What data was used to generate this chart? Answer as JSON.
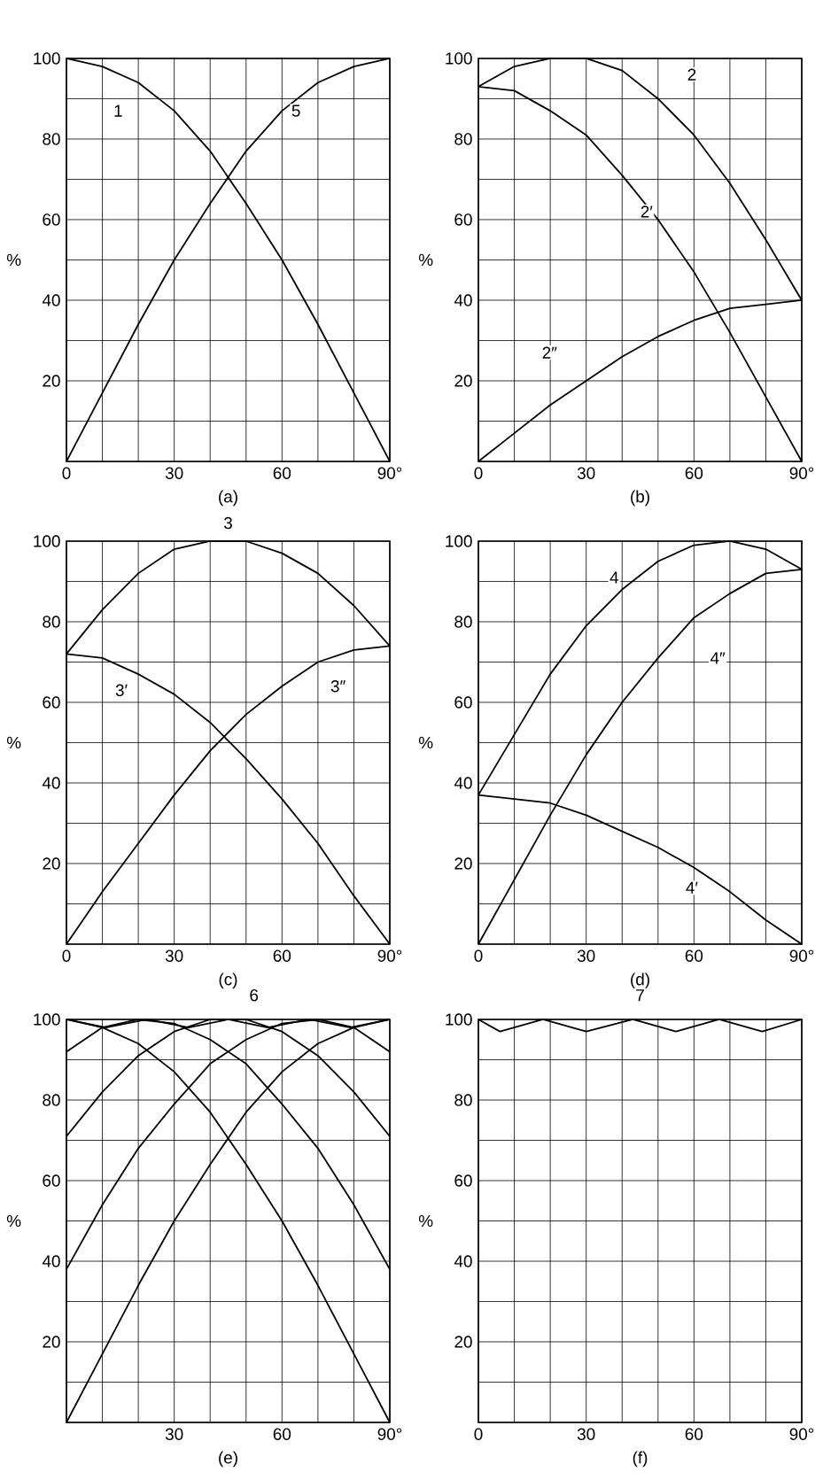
{
  "chart_data": [
    {
      "type": "line",
      "title": "(a)",
      "ylabel": "%",
      "xlim": [
        0,
        90
      ],
      "ylim": [
        0,
        100
      ],
      "grid": true,
      "xticks": [
        {
          "value": 0,
          "label": "0"
        },
        {
          "value": 10,
          "label": null
        },
        {
          "value": 20,
          "label": null
        },
        30,
        {
          "value": 40,
          "label": null
        },
        {
          "value": 50,
          "label": null
        },
        60,
        {
          "value": 70,
          "label": null
        },
        {
          "value": 80,
          "label": null
        },
        {
          "value": 90,
          "label": "90°"
        }
      ],
      "yticks": [
        {
          "value": 0,
          "label": null
        },
        {
          "value": 10,
          "label": null
        },
        20,
        {
          "value": 30,
          "label": null
        },
        40,
        {
          "value": 50,
          "label": null
        },
        60,
        {
          "value": 70,
          "label": null
        },
        80,
        {
          "value": 90,
          "label": null
        },
        100
      ],
      "x": [
        0,
        10,
        20,
        30,
        40,
        50,
        60,
        70,
        80,
        90
      ],
      "series": [
        {
          "color": "#000000",
          "values": [
            100,
            98,
            94,
            87,
            77,
            64,
            50,
            34,
            17,
            0
          ]
        },
        {
          "color": "#000000",
          "values": [
            0,
            17,
            34,
            50,
            64,
            77,
            87,
            94,
            98,
            100
          ]
        }
      ],
      "annotations": [
        "1",
        "5"
      ]
    },
    {
      "type": "line",
      "title": "(b)",
      "ylabel": "%",
      "xlim": [
        0,
        90
      ],
      "ylim": [
        0,
        100
      ],
      "grid": true,
      "xticks": [
        {
          "value": 0,
          "label": "0"
        },
        {
          "value": 10,
          "label": null
        },
        {
          "value": 20,
          "label": null
        },
        30,
        {
          "value": 40,
          "label": null
        },
        {
          "value": 50,
          "label": null
        },
        60,
        {
          "value": 70,
          "label": null
        },
        {
          "value": 80,
          "label": null
        },
        {
          "value": 90,
          "label": "90°"
        }
      ],
      "yticks": [
        {
          "value": 0,
          "label": null
        },
        {
          "value": 10,
          "label": null
        },
        20,
        {
          "value": 30,
          "label": null
        },
        40,
        {
          "value": 50,
          "label": null
        },
        60,
        {
          "value": 70,
          "label": null
        },
        80,
        {
          "value": 90,
          "label": null
        },
        100
      ],
      "x": [
        0,
        10,
        20,
        30,
        40,
        50,
        60,
        70,
        80,
        90
      ],
      "series": [
        {
          "color": "#000000",
          "values": [
            93,
            98,
            100,
            100,
            97,
            90,
            81,
            69,
            55,
            40
          ]
        },
        {
          "color": "#000000",
          "values": [
            93,
            92,
            87,
            81,
            71,
            60,
            47,
            32,
            16,
            0
          ]
        },
        {
          "color": "#000000",
          "values": [
            0,
            7,
            14,
            20,
            26,
            31,
            35,
            38,
            39,
            40
          ]
        }
      ],
      "annotations": [
        "2",
        "2′",
        "2″"
      ]
    },
    {
      "type": "line",
      "title": "(c)",
      "ylabel": "%",
      "xlim": [
        0,
        90
      ],
      "ylim": [
        0,
        100
      ],
      "grid": true,
      "xticks": [
        {
          "value": 0,
          "label": "0"
        },
        {
          "value": 10,
          "label": null
        },
        {
          "value": 20,
          "label": null
        },
        30,
        {
          "value": 40,
          "label": null
        },
        {
          "value": 50,
          "label": null
        },
        60,
        {
          "value": 70,
          "label": null
        },
        {
          "value": 80,
          "label": null
        },
        {
          "value": 90,
          "label": "90°"
        }
      ],
      "yticks": [
        {
          "value": 0,
          "label": null
        },
        {
          "value": 10,
          "label": null
        },
        20,
        {
          "value": 30,
          "label": null
        },
        40,
        {
          "value": 50,
          "label": null
        },
        60,
        {
          "value": 70,
          "label": null
        },
        80,
        {
          "value": 90,
          "label": null
        },
        100
      ],
      "x": [
        0,
        10,
        20,
        30,
        40,
        50,
        60,
        70,
        80,
        90
      ],
      "series": [
        {
          "color": "#000000",
          "values": [
            72,
            83,
            92,
            98,
            100,
            100,
            97,
            92,
            84,
            74
          ]
        },
        {
          "color": "#000000",
          "values": [
            72,
            71,
            67,
            62,
            55,
            46,
            36,
            25,
            12,
            0
          ]
        },
        {
          "color": "#000000",
          "values": [
            0,
            13,
            25,
            37,
            48,
            57,
            64,
            70,
            73,
            74
          ]
        }
      ],
      "annotations": [
        "3",
        "3′",
        "3″"
      ]
    },
    {
      "type": "line",
      "title": "(d)",
      "ylabel": "%",
      "xlim": [
        0,
        90
      ],
      "ylim": [
        0,
        100
      ],
      "grid": true,
      "xticks": [
        {
          "value": 0,
          "label": "0"
        },
        {
          "value": 10,
          "label": null
        },
        {
          "value": 20,
          "label": null
        },
        30,
        {
          "value": 40,
          "label": null
        },
        {
          "value": 50,
          "label": null
        },
        60,
        {
          "value": 70,
          "label": null
        },
        {
          "value": 80,
          "label": null
        },
        {
          "value": 90,
          "label": "90°"
        }
      ],
      "yticks": [
        {
          "value": 0,
          "label": null
        },
        {
          "value": 10,
          "label": null
        },
        20,
        {
          "value": 30,
          "label": null
        },
        40,
        {
          "value": 50,
          "label": null
        },
        60,
        {
          "value": 70,
          "label": null
        },
        80,
        {
          "value": 90,
          "label": null
        },
        100
      ],
      "x": [
        0,
        10,
        20,
        30,
        40,
        50,
        60,
        70,
        80,
        90
      ],
      "series": [
        {
          "color": "#000000",
          "values": [
            37,
            52,
            67,
            79,
            88,
            95,
            99,
            100,
            98,
            93
          ]
        },
        {
          "color": "#000000",
          "values": [
            37,
            36,
            35,
            32,
            28,
            24,
            19,
            13,
            6,
            0
          ]
        },
        {
          "color": "#000000",
          "values": [
            0,
            16,
            32,
            47,
            60,
            71,
            81,
            87,
            92,
            93
          ]
        }
      ],
      "annotations": [
        "4",
        "4′",
        "4″"
      ]
    },
    {
      "type": "line",
      "title": "(e)",
      "ylabel": "%",
      "xlim": [
        0,
        90
      ],
      "ylim": [
        0,
        100
      ],
      "grid": true,
      "xticks": [
        {
          "value": 0,
          "label": null
        },
        {
          "value": 10,
          "label": null
        },
        {
          "value": 20,
          "label": null
        },
        30,
        {
          "value": 40,
          "label": null
        },
        {
          "value": 50,
          "label": null
        },
        60,
        {
          "value": 70,
          "label": null
        },
        {
          "value": 80,
          "label": null
        },
        {
          "value": 90,
          "label": "90°"
        }
      ],
      "yticks": [
        {
          "value": 0,
          "label": null
        },
        {
          "value": 10,
          "label": null
        },
        20,
        {
          "value": 30,
          "label": null
        },
        40,
        {
          "value": 50,
          "label": null
        },
        60,
        {
          "value": 70,
          "label": null
        },
        80,
        {
          "value": 90,
          "label": null
        },
        100
      ],
      "x": [
        0,
        10,
        20,
        30,
        40,
        50,
        60,
        70,
        80,
        90
      ],
      "series": [
        {
          "color": "#000000",
          "values": [
            100,
            98,
            94,
            87,
            77,
            64,
            50,
            34,
            17,
            0
          ]
        },
        {
          "color": "#000000",
          "values": [
            92,
            98,
            100,
            99,
            95,
            89,
            79,
            68,
            54,
            38
          ]
        },
        {
          "color": "#000000",
          "values": [
            71,
            82,
            91,
            97,
            100,
            100,
            97,
            91,
            82,
            71
          ]
        },
        {
          "color": "#000000",
          "values": [
            38,
            54,
            68,
            79,
            89,
            95,
            99,
            100,
            98,
            92
          ]
        },
        {
          "color": "#000000",
          "values": [
            0,
            17,
            34,
            50,
            64,
            77,
            87,
            94,
            98,
            100
          ]
        },
        {
          "color": "#000000",
          "x": [
            0,
            11,
            22.5,
            34,
            45,
            56,
            67.5,
            79,
            90
          ],
          "values": [
            100,
            98,
            100,
            98,
            100,
            98,
            100,
            98,
            100
          ]
        }
      ],
      "annotations": [
        "6"
      ]
    },
    {
      "type": "line",
      "title": "(f)",
      "ylabel": "%",
      "xlim": [
        0,
        90
      ],
      "ylim": [
        0,
        100
      ],
      "grid": true,
      "xticks": [
        {
          "value": 0,
          "label": "0"
        },
        {
          "value": 10,
          "label": null
        },
        {
          "value": 20,
          "label": null
        },
        30,
        {
          "value": 40,
          "label": null
        },
        {
          "value": 50,
          "label": null
        },
        60,
        {
          "value": 70,
          "label": null
        },
        {
          "value": 80,
          "label": null
        },
        {
          "value": 90,
          "label": "90°"
        }
      ],
      "yticks": [
        {
          "value": 0,
          "label": null
        },
        {
          "value": 10,
          "label": null
        },
        20,
        {
          "value": 30,
          "label": null
        },
        40,
        {
          "value": 50,
          "label": null
        },
        60,
        {
          "value": 70,
          "label": null
        },
        80,
        {
          "value": 90,
          "label": null
        },
        100
      ],
      "series": [
        {
          "color": "#000000",
          "x": [
            0,
            6,
            18,
            30,
            43,
            55,
            67,
            79,
            90
          ],
          "values": [
            100,
            97,
            100,
            97,
            100,
            97,
            100,
            97,
            100
          ]
        }
      ],
      "annotations": [
        "7"
      ]
    }
  ]
}
